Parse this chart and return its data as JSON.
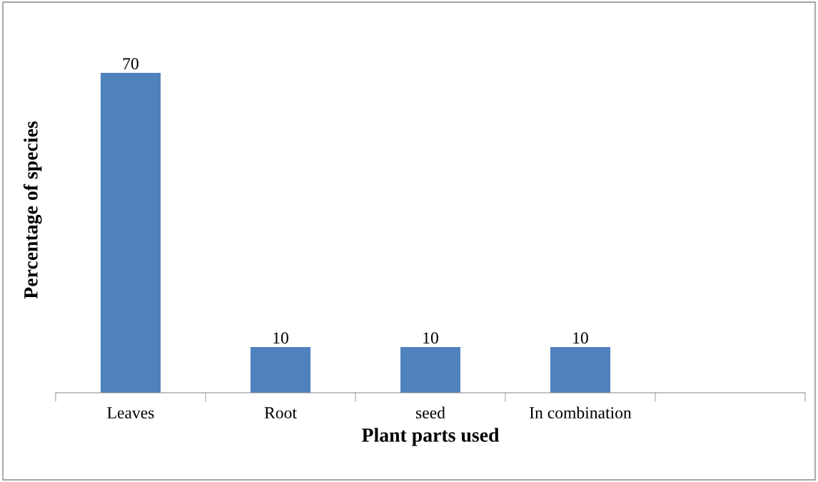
{
  "chart_data": {
    "type": "bar",
    "xlabel": "Plant parts used",
    "ylabel": "Percentage of species",
    "categories": [
      "Leaves",
      "Root",
      "seed",
      "In combination",
      null
    ],
    "values": [
      70,
      10,
      10,
      10,
      null
    ],
    "color": "#4f81bd",
    "data_labels": true,
    "grid": false,
    "legend": false
  }
}
